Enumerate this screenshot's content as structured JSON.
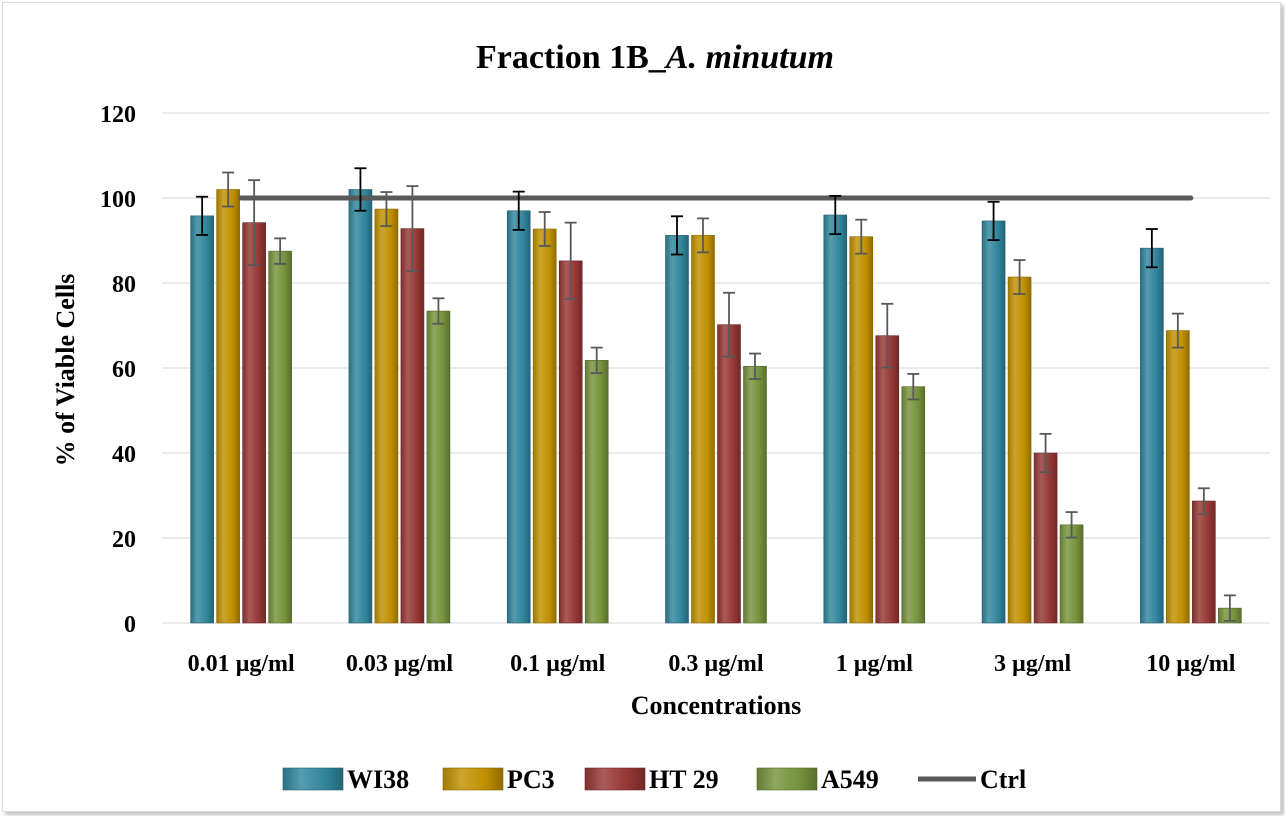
{
  "chart_data": {
    "type": "bar",
    "title_main": "Fraction 1B_",
    "title_italic": "A. minutum",
    "xlabel": "Concentrations",
    "ylabel": "% of Viable Cells",
    "ylim": [
      0,
      120
    ],
    "yticks": [
      0,
      20,
      40,
      60,
      80,
      100,
      120
    ],
    "grid": true,
    "legend_position": "bottom",
    "categories": [
      "0.01 µg/ml",
      "0.03 µg/ml",
      "0.1 µg/ml",
      "0.3 µg/ml",
      "1 µg/ml",
      "3 µg/ml",
      "10 µg/ml"
    ],
    "series": [
      {
        "name": "WI38",
        "color": "#31859c",
        "values": [
          95.8,
          102.0,
          97.0,
          91.2,
          96.0,
          94.6,
          88.2
        ],
        "errors": [
          4.5,
          5.0,
          4.5,
          4.5,
          4.5,
          4.5,
          4.5
        ]
      },
      {
        "name": "PC3",
        "color": "#c09000",
        "values": [
          102.0,
          97.4,
          92.7,
          91.2,
          90.9,
          81.4,
          68.8
        ],
        "errors": [
          4.0,
          4.0,
          4.0,
          4.0,
          4.0,
          4.0,
          4.0
        ]
      },
      {
        "name": "HT 29",
        "color": "#953735",
        "values": [
          94.2,
          92.8,
          85.2,
          70.2,
          67.6,
          40.0,
          28.7
        ],
        "errors": [
          10.0,
          10.0,
          9.0,
          7.5,
          7.5,
          4.5,
          3.0
        ]
      },
      {
        "name": "A549",
        "color": "#76923c",
        "values": [
          87.5,
          73.4,
          61.8,
          60.4,
          55.6,
          23.1,
          3.5
        ],
        "errors": [
          3.0,
          3.0,
          3.0,
          3.0,
          3.0,
          3.0,
          3.0
        ]
      }
    ],
    "line_series": {
      "name": "Ctrl",
      "color": "#595959",
      "value": 100
    }
  }
}
